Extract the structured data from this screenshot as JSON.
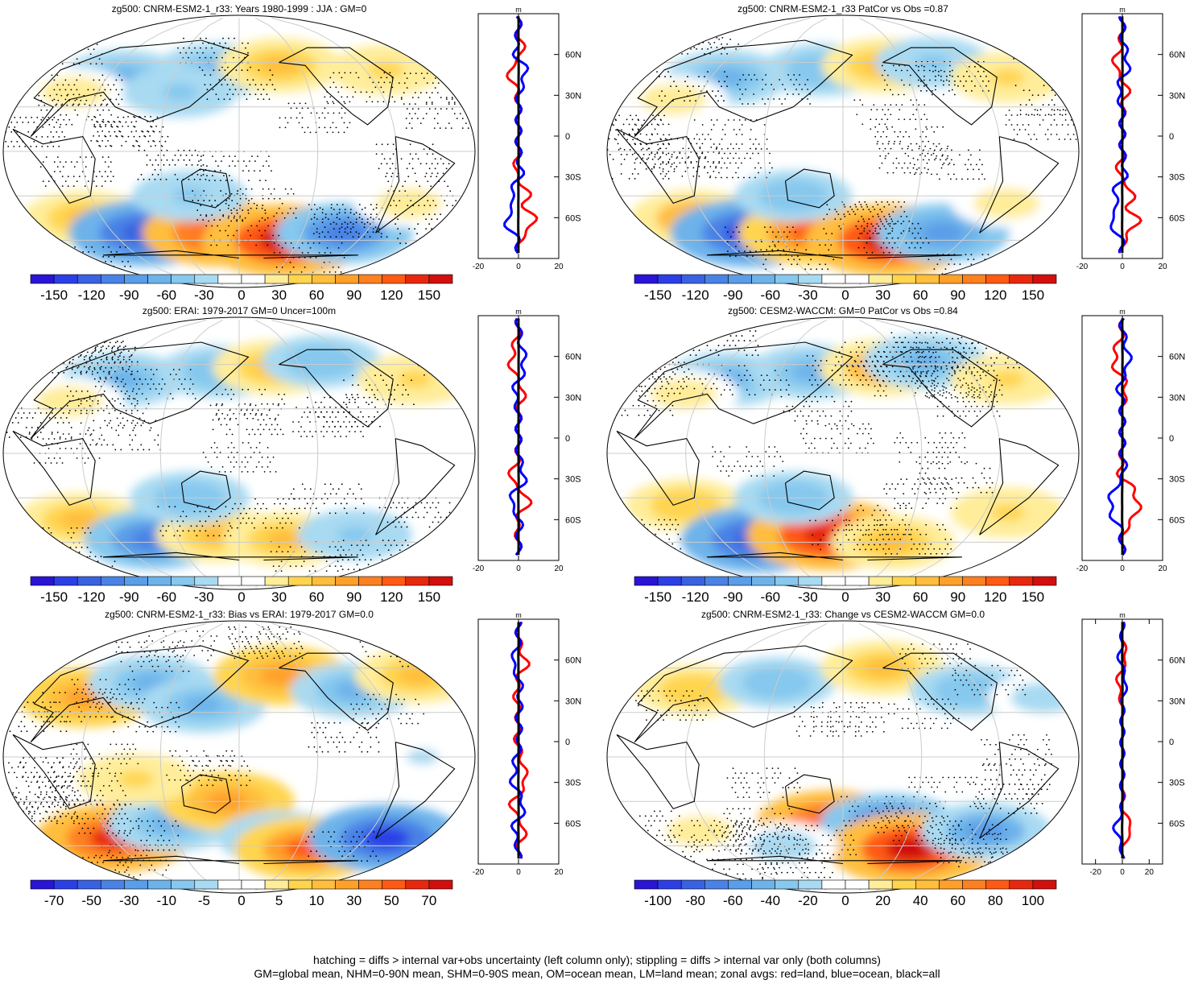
{
  "figure": {
    "caption_line1": "hatching = diffs > internal var+obs uncertainty (left column only); stippling = diffs > internal var only (both columns)",
    "caption_line2": "GM=global mean, NHM=0-90N mean, SHM=0-90S mean, OM=ocean mean, LM=land mean; zonal avgs: red=land, blue=ocean, black=all"
  },
  "colors": {
    "land_profile": "#ff0000",
    "ocean_profile": "#0000ff",
    "all_profile": "#000000",
    "map_background": "#ffffff",
    "graticule": "#cccccc"
  },
  "palette": [
    "#2a14d6",
    "#2c3fe6",
    "#3a62e0",
    "#4a82e6",
    "#5a9de8",
    "#6db3ea",
    "#86c8ee",
    "#a8daf2",
    "#ffffff",
    "#ffffff",
    "#ffed9a",
    "#ffd54f",
    "#ffbe3c",
    "#ffa02a",
    "#ff8020",
    "#ff5a14",
    "#e8280e",
    "#d20e0e"
  ],
  "profile_lat_labels": [
    "60N",
    "30N",
    "0",
    "30S",
    "60S"
  ],
  "chart_data": [
    {
      "type": "heatmap",
      "title": "zg500: CNRM-ESM2-1_r33: Years 1980-1999 : JJA : GM=0",
      "colorbar_labels": [
        "-150",
        "-120",
        "-90",
        "-60",
        "-30",
        "0",
        "30",
        "60",
        "90",
        "120",
        "150"
      ],
      "profile": {
        "unit": "m",
        "xlim": [
          -20,
          20
        ],
        "xtick_labels": [
          "-20",
          "0",
          "20"
        ]
      },
      "blobs": [
        {
          "lon": 55,
          "lat": 50,
          "value": -60
        },
        {
          "lon": 140,
          "lat": 55,
          "value": -60
        },
        {
          "lon": 200,
          "lat": 58,
          "value": 60
        },
        {
          "lon": 300,
          "lat": 55,
          "value": 40
        },
        {
          "lon": 20,
          "lat": 40,
          "value": 30
        },
        {
          "lon": 110,
          "lat": 40,
          "value": -40
        },
        {
          "lon": 25,
          "lat": -45,
          "value": 60
        },
        {
          "lon": 70,
          "lat": -55,
          "value": -120
        },
        {
          "lon": 140,
          "lat": -55,
          "value": 120
        },
        {
          "lon": 205,
          "lat": -60,
          "value": 150
        },
        {
          "lon": 260,
          "lat": -55,
          "value": -90
        },
        {
          "lon": 120,
          "lat": -30,
          "value": -40
        },
        {
          "lon": 300,
          "lat": -35,
          "value": 30
        }
      ]
    },
    {
      "type": "heatmap",
      "title": "zg500: CNRM-ESM2-1_r33 PatCor vs Obs =0.87",
      "colorbar_labels": [
        "-150",
        "-120",
        "-90",
        "-60",
        "-30",
        "0",
        "30",
        "60",
        "90",
        "120",
        "150"
      ],
      "profile": {
        "unit": "m",
        "xlim": [
          -20,
          20
        ],
        "xtick_labels": [
          "-20",
          "0",
          "20"
        ]
      },
      "blobs": [
        {
          "lon": 55,
          "lat": 50,
          "value": -60
        },
        {
          "lon": 140,
          "lat": 55,
          "value": -50
        },
        {
          "lon": 200,
          "lat": 58,
          "value": 60
        },
        {
          "lon": 250,
          "lat": 60,
          "value": -40
        },
        {
          "lon": 310,
          "lat": 50,
          "value": 40
        },
        {
          "lon": 20,
          "lat": 35,
          "value": 30
        },
        {
          "lon": 30,
          "lat": -45,
          "value": 70
        },
        {
          "lon": 70,
          "lat": -55,
          "value": -130
        },
        {
          "lon": 130,
          "lat": -55,
          "value": 110
        },
        {
          "lon": 205,
          "lat": -60,
          "value": 150
        },
        {
          "lon": 255,
          "lat": -55,
          "value": -80
        },
        {
          "lon": 120,
          "lat": -30,
          "value": -45
        },
        {
          "lon": 295,
          "lat": -35,
          "value": 30
        }
      ]
    },
    {
      "type": "heatmap",
      "title": "zg500: ERAI: 1979-2017 GM=0 Uncer=100m",
      "colorbar_labels": [
        "-150",
        "-120",
        "-90",
        "-60",
        "-30",
        "0",
        "30",
        "60",
        "90",
        "120",
        "150"
      ],
      "profile": {
        "unit": "m",
        "xlim": [
          -20,
          20
        ],
        "xtick_labels": [
          "-20",
          "0",
          "20"
        ]
      },
      "blobs": [
        {
          "lon": 55,
          "lat": 50,
          "value": -60
        },
        {
          "lon": 140,
          "lat": 55,
          "value": -50
        },
        {
          "lon": 195,
          "lat": 58,
          "value": 60
        },
        {
          "lon": 245,
          "lat": 62,
          "value": -50
        },
        {
          "lon": 320,
          "lat": 50,
          "value": 40
        },
        {
          "lon": 20,
          "lat": 35,
          "value": 30
        },
        {
          "lon": 20,
          "lat": -45,
          "value": 60
        },
        {
          "lon": 75,
          "lat": -58,
          "value": -90
        },
        {
          "lon": 140,
          "lat": -55,
          "value": 60
        },
        {
          "lon": 205,
          "lat": -58,
          "value": 60
        },
        {
          "lon": 120,
          "lat": -30,
          "value": -50
        },
        {
          "lon": 270,
          "lat": -55,
          "value": -40
        }
      ]
    },
    {
      "type": "heatmap",
      "title": "zg500: CESM2-WACCM: GM=0 PatCor vs Obs =0.84",
      "colorbar_labels": [
        "-150",
        "-120",
        "-90",
        "-60",
        "-30",
        "0",
        "30",
        "60",
        "90",
        "120",
        "150"
      ],
      "profile": {
        "unit": "m",
        "xlim": [
          -20,
          20
        ],
        "xtick_labels": [
          "-20",
          "0",
          "20"
        ]
      },
      "blobs": [
        {
          "lon": 55,
          "lat": 50,
          "value": -60
        },
        {
          "lon": 130,
          "lat": 55,
          "value": -60
        },
        {
          "lon": 200,
          "lat": 58,
          "value": 70
        },
        {
          "lon": 245,
          "lat": 62,
          "value": -60
        },
        {
          "lon": 310,
          "lat": 50,
          "value": 40
        },
        {
          "lon": 25,
          "lat": 40,
          "value": 30
        },
        {
          "lon": 30,
          "lat": -35,
          "value": 50
        },
        {
          "lon": 75,
          "lat": -58,
          "value": -120
        },
        {
          "lon": 145,
          "lat": -55,
          "value": 140
        },
        {
          "lon": 210,
          "lat": -60,
          "value": 60
        },
        {
          "lon": 120,
          "lat": -30,
          "value": -50
        },
        {
          "lon": 300,
          "lat": -40,
          "value": 40
        }
      ]
    },
    {
      "type": "heatmap",
      "title": "zg500: CNRM-ESM2-1_r33: Bias vs ERAI: 1979-2017 GM=0.0",
      "colorbar_labels": [
        "-70",
        "-50",
        "-30",
        "-10",
        "-5",
        "0",
        "5",
        "10",
        "30",
        "50",
        "70"
      ],
      "profile": {
        "unit": "m",
        "xlim": [
          -20,
          20
        ],
        "xtick_labels": [
          "-20",
          "0",
          "20"
        ]
      },
      "blobs": [
        {
          "lon": 30,
          "lat": 40,
          "value": 40
        },
        {
          "lon": 80,
          "lat": 50,
          "value": -30
        },
        {
          "lon": 130,
          "lat": 35,
          "value": -30
        },
        {
          "lon": 200,
          "lat": 55,
          "value": 40
        },
        {
          "lon": 260,
          "lat": 45,
          "value": -30
        },
        {
          "lon": 330,
          "lat": 55,
          "value": 30
        },
        {
          "lon": 40,
          "lat": -55,
          "value": 60
        },
        {
          "lon": 100,
          "lat": -45,
          "value": -30
        },
        {
          "lon": 150,
          "lat": -30,
          "value": 40
        },
        {
          "lon": 200,
          "lat": -55,
          "value": -30
        },
        {
          "lon": 230,
          "lat": -62,
          "value": 50
        },
        {
          "lon": 300,
          "lat": -55,
          "value": -60
        },
        {
          "lon": 80,
          "lat": -15,
          "value": 20
        },
        {
          "lon": 300,
          "lat": 0,
          "value": -10
        }
      ]
    },
    {
      "type": "heatmap",
      "title": "zg500: CNRM-ESM2-1_r33: Change vs CESM2-WACCM GM=0.0",
      "colorbar_labels": [
        "-100",
        "-80",
        "-60",
        "-40",
        "-20",
        "0",
        "20",
        "40",
        "60",
        "80",
        "100"
      ],
      "profile": {
        "unit": "m",
        "xlim": [
          -30,
          30
        ],
        "xtick_labels": [
          "-20",
          "0",
          "20"
        ]
      },
      "blobs": [
        {
          "lon": 30,
          "lat": 45,
          "value": 30
        },
        {
          "lon": 100,
          "lat": 50,
          "value": -30
        },
        {
          "lon": 200,
          "lat": 60,
          "value": 40
        },
        {
          "lon": 270,
          "lat": 45,
          "value": -30
        },
        {
          "lon": 330,
          "lat": 40,
          "value": -20
        },
        {
          "lon": 30,
          "lat": -50,
          "value": 20
        },
        {
          "lon": 150,
          "lat": -45,
          "value": 80
        },
        {
          "lon": 200,
          "lat": -45,
          "value": -60
        },
        {
          "lon": 230,
          "lat": -62,
          "value": 100
        },
        {
          "lon": 290,
          "lat": -50,
          "value": -50
        },
        {
          "lon": 100,
          "lat": -60,
          "value": -20
        }
      ]
    }
  ]
}
